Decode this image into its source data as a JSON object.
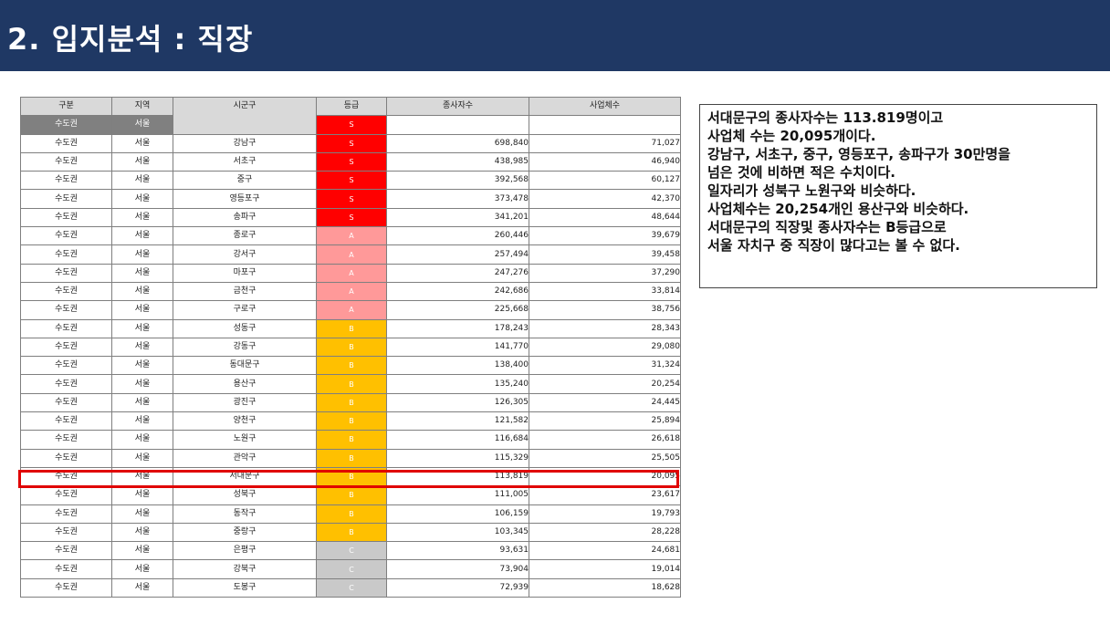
{
  "header": {
    "title": "2. 입지분석 : 직장"
  },
  "table": {
    "columns": [
      "구분",
      "지역",
      "시군구",
      "등급",
      "종사자수",
      "사업체수"
    ],
    "subheader": {
      "c1": "수도권",
      "c2": "서울",
      "grade": "S"
    },
    "grade_colors": {
      "S": "#ff0000",
      "A": "#ff9999",
      "B": "#ffc000",
      "C": "#c9c9c9"
    },
    "rows": [
      [
        "수도권",
        "서울",
        "강남구",
        "S",
        "698,840",
        "71,027"
      ],
      [
        "수도권",
        "서울",
        "서초구",
        "S",
        "438,985",
        "46,940"
      ],
      [
        "수도권",
        "서울",
        "중구",
        "S",
        "392,568",
        "60,127"
      ],
      [
        "수도권",
        "서울",
        "영등포구",
        "S",
        "373,478",
        "42,370"
      ],
      [
        "수도권",
        "서울",
        "송파구",
        "S",
        "341,201",
        "48,644"
      ],
      [
        "수도권",
        "서울",
        "종로구",
        "A",
        "260,446",
        "39,679"
      ],
      [
        "수도권",
        "서울",
        "강서구",
        "A",
        "257,494",
        "39,458"
      ],
      [
        "수도권",
        "서울",
        "마포구",
        "A",
        "247,276",
        "37,290"
      ],
      [
        "수도권",
        "서울",
        "금천구",
        "A",
        "242,686",
        "33,814"
      ],
      [
        "수도권",
        "서울",
        "구로구",
        "A",
        "225,668",
        "38,756"
      ],
      [
        "수도권",
        "서울",
        "성동구",
        "B",
        "178,243",
        "28,343"
      ],
      [
        "수도권",
        "서울",
        "강동구",
        "B",
        "141,770",
        "29,080"
      ],
      [
        "수도권",
        "서울",
        "동대문구",
        "B",
        "138,400",
        "31,324"
      ],
      [
        "수도권",
        "서울",
        "용산구",
        "B",
        "135,240",
        "20,254"
      ],
      [
        "수도권",
        "서울",
        "광진구",
        "B",
        "126,305",
        "24,445"
      ],
      [
        "수도권",
        "서울",
        "양천구",
        "B",
        "121,582",
        "25,894"
      ],
      [
        "수도권",
        "서울",
        "노원구",
        "B",
        "116,684",
        "26,618"
      ],
      [
        "수도권",
        "서울",
        "관악구",
        "B",
        "115,329",
        "25,505"
      ],
      [
        "수도권",
        "서울",
        "서대문구",
        "B",
        "113,819",
        "20,095"
      ],
      [
        "수도권",
        "서울",
        "성북구",
        "B",
        "111,005",
        "23,617"
      ],
      [
        "수도권",
        "서울",
        "동작구",
        "B",
        "106,159",
        "19,793"
      ],
      [
        "수도권",
        "서울",
        "중랑구",
        "B",
        "103,345",
        "28,228"
      ],
      [
        "수도권",
        "서울",
        "은평구",
        "C",
        "93,631",
        "24,681"
      ],
      [
        "수도권",
        "서울",
        "강북구",
        "C",
        "73,904",
        "19,014"
      ],
      [
        "수도권",
        "서울",
        "도봉구",
        "C",
        "72,939",
        "18,628"
      ]
    ]
  },
  "note": {
    "lines": [
      "서대문구의 종사자수는 113.819명이고",
      "사업체 수는 20,095개이다.",
      "강남구, 서초구, 중구, 영등포구, 송파구가 30만명을",
      "넘은 것에 비하면 적은 수치이다.",
      "일자리가 성북구 노원구와 비슷하다.",
      "사업체수는  20,254개인 용산구와 비슷하다.",
      "서대문구의 직장및 종사자수는 B등급으로",
      "서울 자치구 중 직장이 많다고는 볼 수 없다."
    ]
  }
}
